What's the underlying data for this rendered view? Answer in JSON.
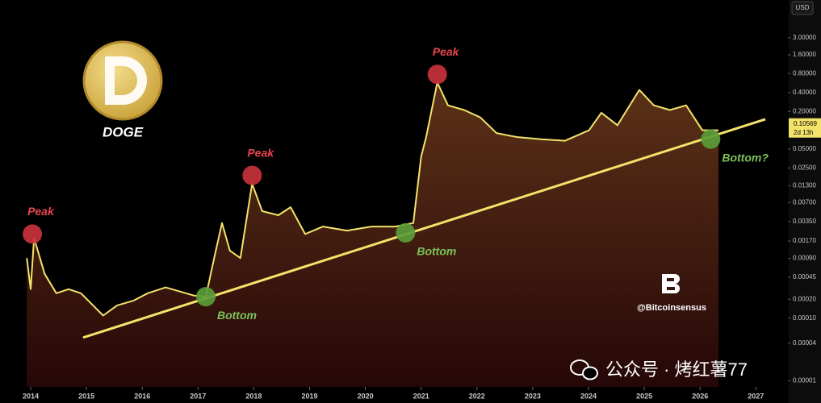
{
  "chart_data": {
    "type": "line",
    "title": "DOGE",
    "currency": "USD",
    "credit": "@Bitcoinsensus",
    "watermark": "公众号 · 烤红薯77",
    "log_scale": true,
    "line_color": "#f3e36a",
    "x": [
      2013.93,
      2014.0,
      2014.06,
      2014.25,
      2014.46,
      2014.68,
      2014.9,
      2015.3,
      2015.55,
      2015.84,
      2016.1,
      2016.42,
      2016.92,
      2017.14,
      2017.29,
      2017.43,
      2017.57,
      2017.76,
      2017.97,
      2018.15,
      2018.44,
      2018.66,
      2018.92,
      2019.24,
      2019.67,
      2020.11,
      2020.54,
      2020.86,
      2021.0,
      2021.09,
      2021.29,
      2021.48,
      2021.77,
      2022.06,
      2022.35,
      2022.71,
      2023.15,
      2023.58,
      2024.01,
      2024.23,
      2024.52,
      2024.91,
      2025.17,
      2025.46,
      2025.75,
      2026.04,
      2026.33
    ],
    "values": [
      0.00091,
      0.00029,
      0.0019,
      0.00051,
      0.00025,
      0.00029,
      0.00025,
      0.00011,
      0.00016,
      0.00019,
      0.00025,
      0.00031,
      0.00023,
      0.00022,
      0.00091,
      0.0033,
      0.0012,
      0.00091,
      0.014,
      0.0051,
      0.0044,
      0.0059,
      0.0022,
      0.0029,
      0.0025,
      0.0029,
      0.0029,
      0.0033,
      0.038,
      0.078,
      0.58,
      0.25,
      0.21,
      0.16,
      0.09,
      0.078,
      0.072,
      0.068,
      0.1,
      0.19,
      0.12,
      0.44,
      0.25,
      0.21,
      0.25,
      0.1,
      0.1
    ],
    "trendline": {
      "color": "#f3e36a",
      "x": [
        2014.94,
        2027.17
      ],
      "values": [
        4.9e-05,
        0.15
      ]
    },
    "peaks": {
      "color": "#c8323c",
      "text_color": "#e8454f",
      "points": [
        {
          "x": 2014.03,
          "value": 0.0022,
          "label": "Peak"
        },
        {
          "x": 2017.97,
          "value": 0.019,
          "label": "Peak"
        },
        {
          "x": 2021.29,
          "value": 0.78,
          "label": "Peak"
        }
      ]
    },
    "bottoms": {
      "color": "#5b9c3a",
      "text_color": "#7cc25a",
      "points": [
        {
          "x": 2017.14,
          "value": 0.00022,
          "label": "Bottom"
        },
        {
          "x": 2020.72,
          "value": 0.0023,
          "label": "Bottom"
        },
        {
          "x": 2026.19,
          "value": 0.072,
          "label": "Bottom?"
        }
      ]
    },
    "last_price": {
      "value": 0.10569,
      "label": "0.10569"
    },
    "countdown": "2d 13h",
    "xlim": [
      2013.45,
      2027.56
    ],
    "xticks": [
      2014,
      2015,
      2016,
      2017,
      2018,
      2019,
      2020,
      2021,
      2022,
      2023,
      2024,
      2025,
      2026,
      2027
    ],
    "ylim": [
      8e-06,
      12
    ],
    "yticks": [
      {
        "value": 3,
        "label": "3.00000"
      },
      {
        "value": 1.6,
        "label": "1.60000"
      },
      {
        "value": 0.8,
        "label": "0.80000"
      },
      {
        "value": 0.4,
        "label": "0.40000"
      },
      {
        "value": 0.2,
        "label": "0.20000"
      },
      {
        "value": 0.05,
        "label": "0.05000"
      },
      {
        "value": 0.025,
        "label": "0.02500"
      },
      {
        "value": 0.013,
        "label": "0.01300"
      },
      {
        "value": 0.007,
        "label": "0.00700"
      },
      {
        "value": 0.0035,
        "label": "0.00350"
      },
      {
        "value": 0.0017,
        "label": "0.00170"
      },
      {
        "value": 0.0009,
        "label": "0.00090"
      },
      {
        "value": 0.00045,
        "label": "0.00045"
      },
      {
        "value": 0.0002,
        "label": "0.00020"
      },
      {
        "value": 0.0001,
        "label": "0.00010"
      },
      {
        "value": 4e-05,
        "label": "0.00004"
      },
      {
        "value": 1e-05,
        "label": "0.00001"
      }
    ]
  }
}
